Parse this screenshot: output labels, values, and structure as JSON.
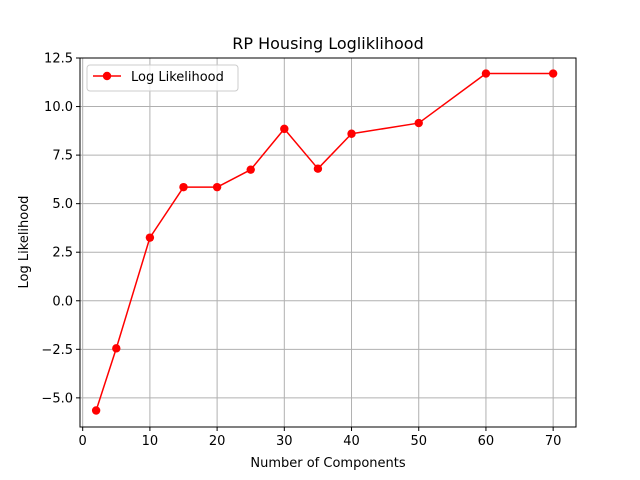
{
  "chart_data": {
    "type": "line",
    "title": "RP Housing Logliklihood",
    "xlabel": "Number of Components",
    "ylabel": "Log Likelihood",
    "xlim": [
      -0.4,
      73.4
    ],
    "ylim": [
      -6.5,
      12.5
    ],
    "xticks": [
      0,
      10,
      20,
      30,
      40,
      50,
      60,
      70
    ],
    "xtick_labels": [
      "0",
      "10",
      "20",
      "30",
      "40",
      "50",
      "60",
      "70"
    ],
    "yticks": [
      -5.0,
      -2.5,
      0.0,
      2.5,
      5.0,
      7.5,
      10.0,
      12.5
    ],
    "ytick_labels": [
      "−5.0",
      "−2.5",
      "0.0",
      "2.5",
      "5.0",
      "7.5",
      "10.0",
      "12.5"
    ],
    "grid": true,
    "legend_position": "upper-left",
    "series": [
      {
        "name": "Log Likelihood",
        "color": "#ff0000",
        "marker": "circle",
        "x": [
          2,
          5,
          10,
          15,
          20,
          25,
          30,
          35,
          40,
          50,
          60,
          70
        ],
        "y": [
          -5.65,
          -2.45,
          3.25,
          5.85,
          5.85,
          6.75,
          8.85,
          6.8,
          8.6,
          9.15,
          11.7,
          11.7
        ]
      }
    ]
  }
}
